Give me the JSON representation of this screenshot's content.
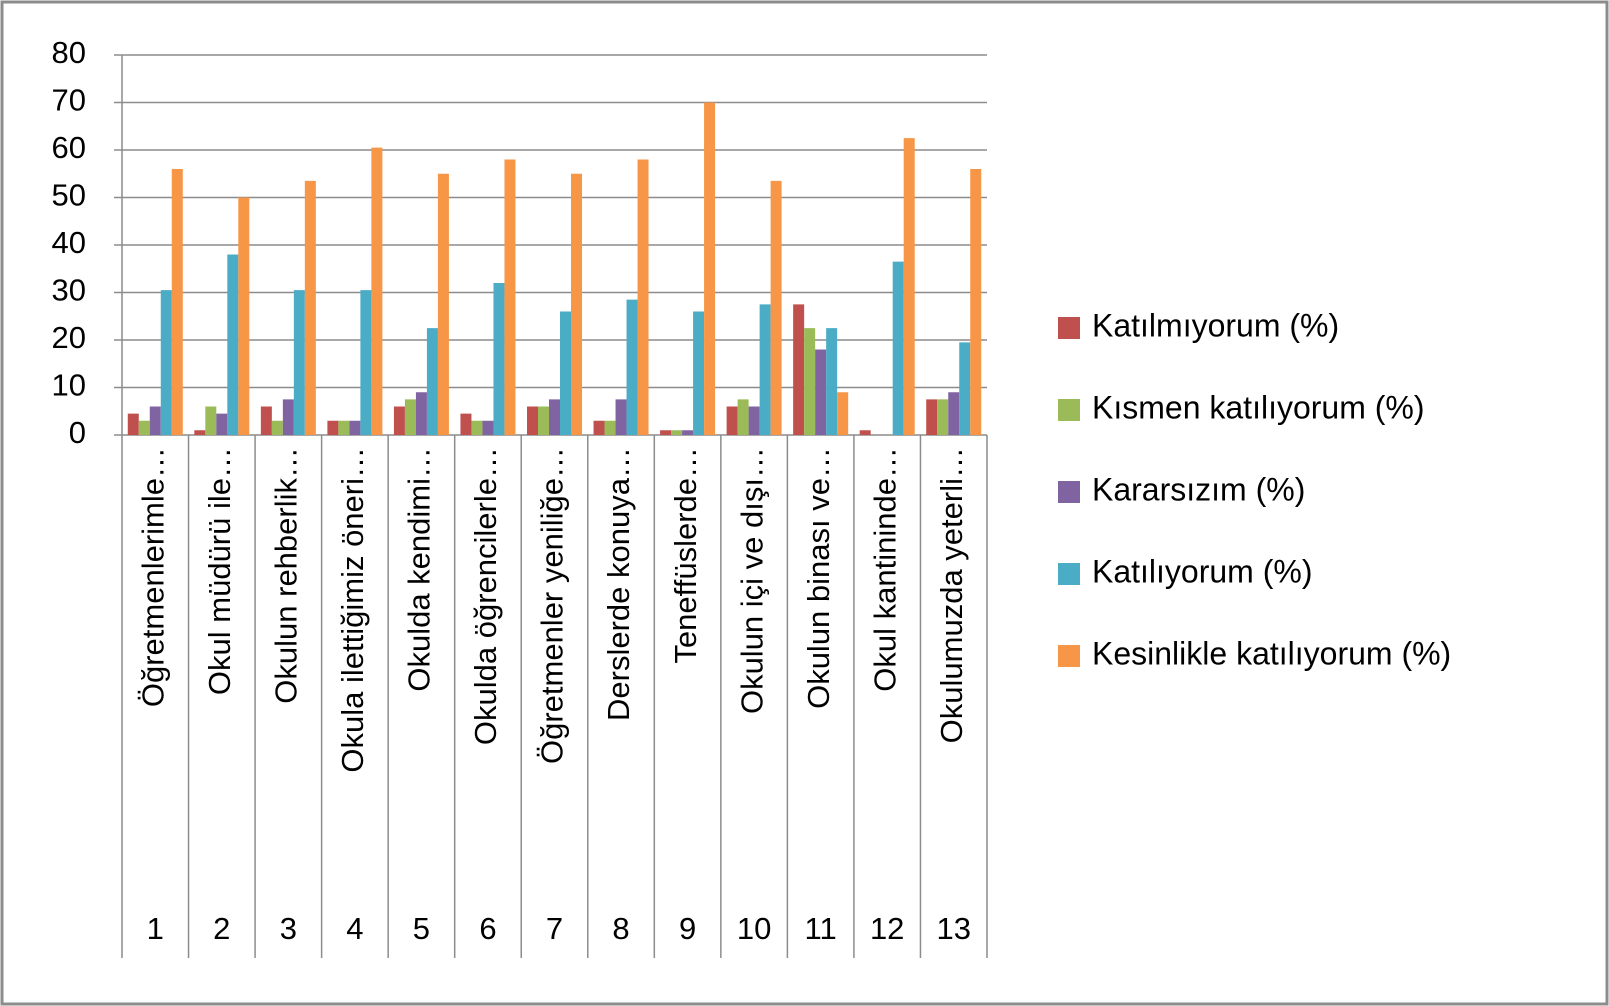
{
  "chart_data": {
    "type": "bar",
    "categories": [
      "Öğretmenlerimle…",
      "Okul müdürü ile…",
      "Okulun rehberlik…",
      "Okula ilettiğimiz öneri…",
      "Okulda kendimi…",
      "Okulda öğrencilerle…",
      "Öğretmenler yeniliğe…",
      "Derslerde konuya…",
      "Teneffüslerde…",
      "Okulun içi ve dışı…",
      "Okulun binası ve…",
      "Okul kantininde…",
      "Okulumuzda yeterli…"
    ],
    "category_numbers": [
      1,
      2,
      3,
      4,
      5,
      6,
      7,
      8,
      9,
      10,
      11,
      12,
      13
    ],
    "series": [
      {
        "name": "Katılmıyorum (%)",
        "color": "#c0504d",
        "values": [
          4.5,
          1,
          6,
          3,
          6,
          4.5,
          6,
          3,
          1,
          6,
          27.5,
          1,
          7.5
        ]
      },
      {
        "name": "Kısmen katılıyorum (%)",
        "color": "#9bbb59",
        "values": [
          3,
          6,
          3,
          3,
          7.5,
          3,
          6,
          3,
          1,
          7.5,
          22.5,
          0,
          7.5
        ]
      },
      {
        "name": "Kararsızım (%)",
        "color": "#8064a2",
        "values": [
          6,
          4.5,
          7.5,
          3,
          9,
          3,
          7.5,
          7.5,
          1,
          6,
          18,
          0,
          9
        ]
      },
      {
        "name": "Katılıyorum (%)",
        "color": "#4bacc6",
        "values": [
          30.5,
          38,
          30.5,
          30.5,
          22.5,
          32,
          26,
          28.5,
          26,
          27.5,
          22.5,
          36.5,
          19.5
        ]
      },
      {
        "name": "Kesinlikle katılıyorum (%)",
        "color": "#f79646",
        "values": [
          56,
          50,
          53.5,
          60.5,
          55,
          58,
          55,
          58,
          70,
          53.5,
          9,
          62.5,
          56
        ]
      }
    ],
    "ylim": [
      0,
      80
    ],
    "yticks": [
      0,
      10,
      20,
      30,
      40,
      50,
      60,
      70,
      80
    ],
    "grid": true,
    "legend": "right"
  }
}
